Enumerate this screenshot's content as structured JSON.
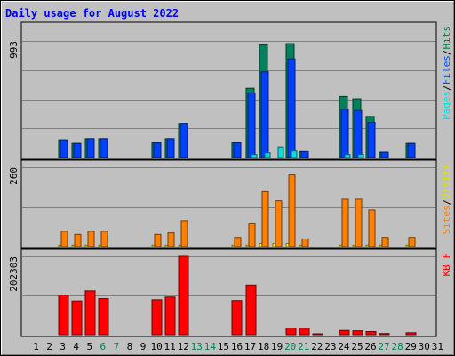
{
  "chart_data": {
    "type": "bar",
    "title": "Daily usage for August 2022",
    "x": [
      1,
      2,
      3,
      4,
      5,
      6,
      7,
      8,
      9,
      10,
      11,
      12,
      13,
      14,
      15,
      16,
      17,
      18,
      19,
      20,
      21,
      22,
      23,
      24,
      25,
      26,
      27,
      28,
      29,
      30,
      31
    ],
    "weekend_days": [
      6,
      7,
      13,
      14,
      20,
      21,
      27,
      28
    ],
    "panels": [
      {
        "id": "hits",
        "ymax_label": "993",
        "ymax": 993,
        "legend": [
          {
            "text": "Pages",
            "color": "#00e0e0"
          },
          {
            "text": "/",
            "color": "#000000"
          },
          {
            "text": "Files",
            "color": "#0050ff"
          },
          {
            "text": "/",
            "color": "#000000"
          },
          {
            "text": "Hits",
            "color": "#008040"
          }
        ],
        "series": [
          {
            "name": "Hits",
            "color": "#00805c",
            "values": [
              0,
              0,
              150,
              120,
              160,
              160,
              0,
              0,
              0,
              125,
              160,
              290,
              0,
              0,
              0,
              125,
              590,
              960,
              0,
              970,
              50,
              0,
              0,
              520,
              500,
              350,
              45,
              0,
              120,
              0,
              0
            ]
          },
          {
            "name": "Files",
            "color": "#0040ff",
            "values": [
              0,
              0,
              150,
              120,
              160,
              160,
              0,
              0,
              0,
              125,
              160,
              290,
              0,
              0,
              0,
              125,
              550,
              730,
              0,
              840,
              50,
              0,
              0,
              410,
              400,
              300,
              45,
              0,
              120,
              0,
              0
            ]
          },
          {
            "name": "Pages",
            "color": "#00e0e0",
            "values": [
              0,
              0,
              0,
              0,
              0,
              0,
              0,
              0,
              0,
              0,
              0,
              0,
              0,
              0,
              0,
              0,
              25,
              40,
              90,
              55,
              0,
              0,
              0,
              25,
              25,
              0,
              0,
              0,
              0,
              0,
              0
            ]
          }
        ]
      },
      {
        "id": "visits",
        "ymax_label": "260",
        "ymax": 260,
        "legend": [
          {
            "text": "Sites",
            "color": "#ff8000"
          },
          {
            "text": "/",
            "color": "#000000"
          },
          {
            "text": "Visits",
            "color": "#e0e000"
          }
        ],
        "series": [
          {
            "name": "Visits",
            "color": "#ffff00",
            "values": [
              0,
              0,
              5,
              5,
              5,
              5,
              0,
              0,
              0,
              5,
              5,
              5,
              0,
              0,
              0,
              5,
              5,
              10,
              10,
              10,
              5,
              0,
              0,
              5,
              5,
              5,
              5,
              0,
              5,
              0,
              0
            ]
          },
          {
            "name": "Sites",
            "color": "#ff8000",
            "values": [
              0,
              0,
              50,
              40,
              50,
              50,
              0,
              0,
              0,
              40,
              45,
              85,
              0,
              0,
              0,
              30,
              75,
              180,
              150,
              235,
              25,
              0,
              0,
              155,
              155,
              120,
              30,
              0,
              30,
              0,
              0
            ]
          }
        ]
      },
      {
        "id": "kbytes",
        "ymax_label": "202303",
        "ymax": 202303,
        "legend": [
          {
            "text": "KB F",
            "color": "#ff0000"
          }
        ],
        "series": [
          {
            "name": "KB F",
            "color": "#ff0000",
            "values": [
              0,
              0,
              102000,
              87000,
              113000,
              93000,
              0,
              0,
              0,
              90000,
              97000,
              202303,
              0,
              0,
              0,
              88000,
              128000,
              0,
              0,
              17000,
              17000,
              2000,
              0,
              11000,
              10000,
              8000,
              3000,
              0,
              5000,
              0,
              0
            ]
          }
        ]
      }
    ]
  },
  "colors": {
    "background": "#c0c0c0",
    "title": "#0000ff",
    "weekday_label": "#000000",
    "weekend_label": "#00805c",
    "gridline": "#808080"
  }
}
